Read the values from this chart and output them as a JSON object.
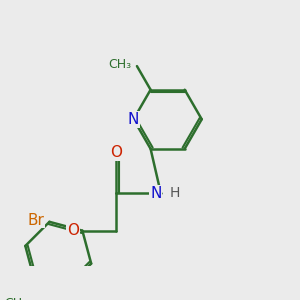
{
  "bg_color": "#ebebeb",
  "bond_color": "#2d6e2d",
  "bond_width": 1.8,
  "atom_colors": {
    "N": "#1010cc",
    "O": "#cc2200",
    "Br": "#cc6600",
    "C": "#2d6e2d",
    "H": "#555555"
  },
  "font_size_atom": 11,
  "font_size_small": 9,
  "font_size_methyl": 9,
  "font_size_H": 10
}
